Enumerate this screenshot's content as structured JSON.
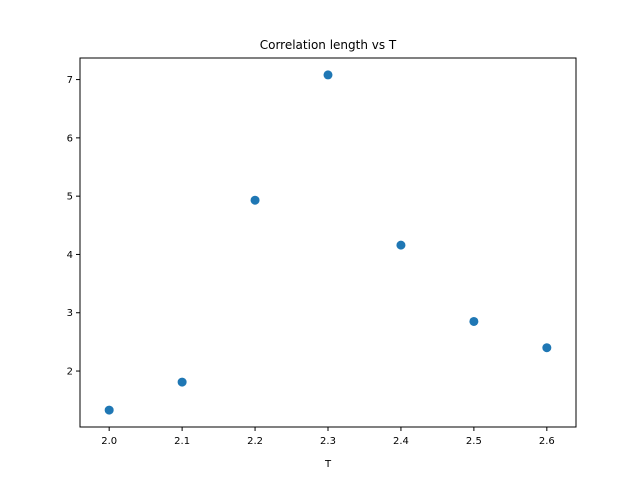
{
  "chart_data": {
    "type": "scatter",
    "title": "Correlation length vs T",
    "xlabel": "T",
    "ylabel": "",
    "x": [
      2.0,
      2.1,
      2.2,
      2.3,
      2.4,
      2.5,
      2.6
    ],
    "y": [
      1.33,
      1.81,
      4.93,
      7.08,
      4.16,
      2.85,
      2.4
    ],
    "xlim": [
      1.96,
      2.64
    ],
    "ylim": [
      1.04,
      7.37
    ],
    "xticks": [
      2.0,
      2.1,
      2.2,
      2.3,
      2.4,
      2.5,
      2.6
    ],
    "xtick_labels": [
      "2.0",
      "2.1",
      "2.2",
      "2.3",
      "2.4",
      "2.5",
      "2.6"
    ],
    "yticks": [
      2,
      3,
      4,
      5,
      6,
      7
    ],
    "ytick_labels": [
      "2",
      "3",
      "4",
      "5",
      "6",
      "7"
    ],
    "grid": false,
    "legend": "none",
    "marker_color": "#1f77b4"
  }
}
